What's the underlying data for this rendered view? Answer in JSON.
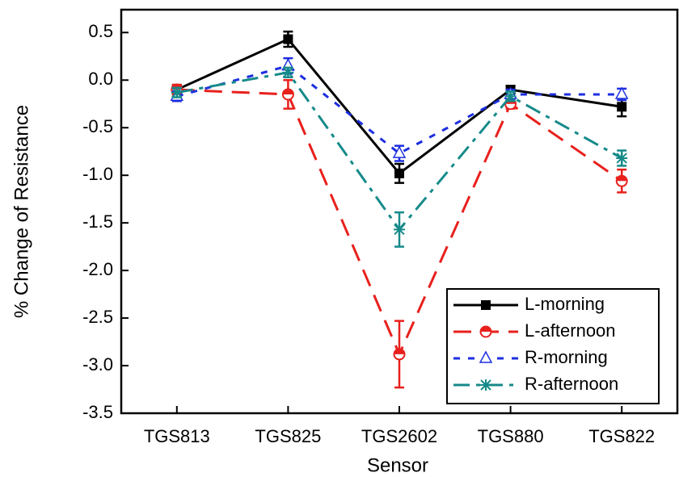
{
  "chart_data": {
    "type": "line",
    "x_label": "Sensor",
    "y_label": "% Change of Resistance",
    "categories": [
      "TGS813",
      "TGS825",
      "TGS2602",
      "TGS880",
      "TGS822"
    ],
    "ylim": [
      -3.5,
      0.74
    ],
    "yticks": [
      0.5,
      {
        "value": 0,
        "label": "0.0"
      },
      -0.5,
      {
        "value": -1,
        "label": "-1.0"
      },
      -1.5,
      {
        "value": -2,
        "label": "-2.0"
      },
      -2.5,
      {
        "value": -3,
        "label": "-3.0"
      },
      -3.5
    ],
    "legend": "lower right",
    "series": [
      {
        "name": "L-morning",
        "color": "#000000",
        "dash": "solid",
        "marker": "square",
        "values": [
          -0.1,
          0.43,
          -0.98,
          -0.1,
          -0.28
        ],
        "errors": [
          0.05,
          0.08,
          0.1,
          0.04,
          0.1
        ]
      },
      {
        "name": "L-afternoon",
        "color": "#e8201c",
        "dash": "dashed",
        "marker": "half-circle",
        "values": [
          -0.1,
          -0.15,
          -2.88,
          -0.25,
          -1.06
        ],
        "errors": [
          0.05,
          0.15,
          0.35,
          0.05,
          0.12
        ]
      },
      {
        "name": "R-morning",
        "color": "#1c2fe0",
        "dash": "dotted",
        "marker": "triangle",
        "values": [
          -0.17,
          0.15,
          -0.77,
          -0.15,
          -0.15
        ],
        "errors": [
          0.05,
          0.08,
          0.08,
          0.05,
          0.06
        ]
      },
      {
        "name": "R-afternoon",
        "color": "#168a8a",
        "dash": "dashdot",
        "marker": "star",
        "values": [
          -0.13,
          0.08,
          -1.57,
          -0.17,
          -0.82
        ],
        "errors": [
          0.05,
          0.05,
          0.18,
          0.05,
          0.08
        ]
      }
    ]
  }
}
